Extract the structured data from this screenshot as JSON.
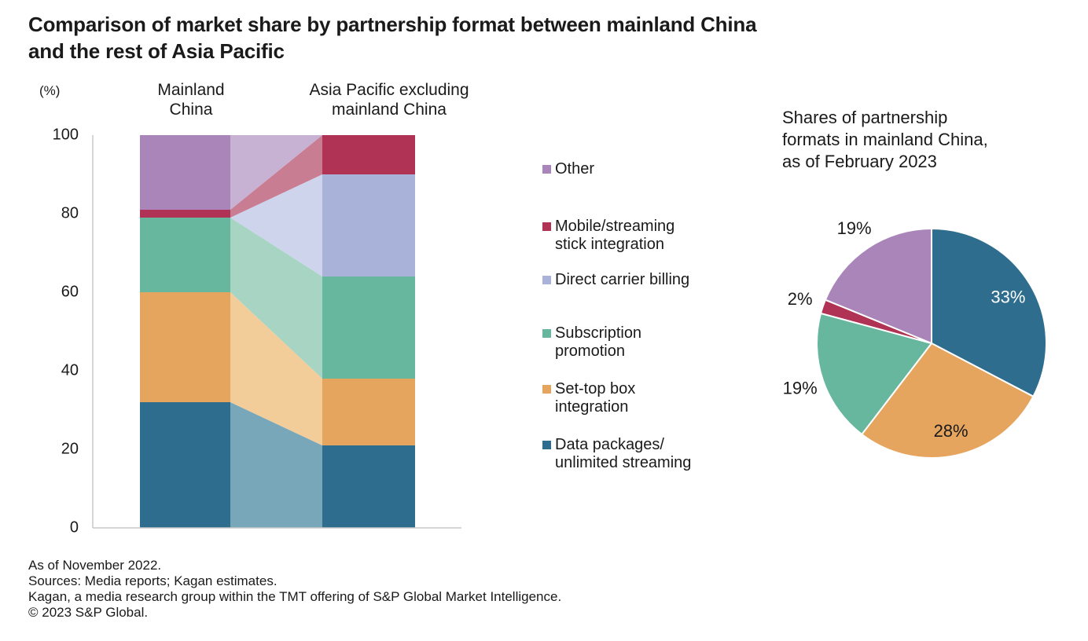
{
  "page": {
    "background": "#ffffff",
    "text_color": "#1a1a1a",
    "axis_color": "#c8c8c8"
  },
  "title": "Comparison of market share by partnership format between mainland China\nand the rest of Asia Pacific",
  "axis": {
    "unit_label": "(%)",
    "ticks": [
      0,
      20,
      40,
      60,
      80,
      100
    ]
  },
  "column_headers": {
    "mainland": "Mainland\nChina",
    "apac": "Asia Pacific excluding\nmainland China"
  },
  "legend": {
    "items": [
      {
        "label": "Other",
        "series": "Other"
      },
      {
        "label": "Mobile/streaming\nstick integration",
        "series": "Mobile/streaming stick integration"
      },
      {
        "label": "Direct carrier billing",
        "series": "Direct carrier billing"
      },
      {
        "label": "Subscription\npromotion",
        "series": "Subscription promotion"
      },
      {
        "label": "Set-top box\nintegration",
        "series": "Set-top box integration"
      },
      {
        "label": "Data packages/\nunlimited streaming",
        "series": "Data packages/unlimited streaming"
      }
    ]
  },
  "pie": {
    "title": "Shares of partnership\nformats in mainland China,\nas of February 2023"
  },
  "footer": {
    "lines": [
      "As of November 2022.",
      "Sources: Media reports; Kagan estimates.",
      "Kagan, a media research group within the TMT offering of S&P Global Market Intelligence.",
      "© 2023 S&P Global."
    ]
  },
  "chart_data": [
    {
      "type": "area",
      "title": "Comparison of market share by partnership format between mainland China and the rest of Asia Pacific",
      "xlabel": "",
      "ylabel": "(%)",
      "ylim": [
        0,
        100
      ],
      "yticks": [
        0,
        20,
        40,
        60,
        80,
        100
      ],
      "grid": false,
      "categories": [
        "Mainland China",
        "Asia Pacific excluding mainland China"
      ],
      "series": [
        {
          "name": "Data packages/unlimited streaming",
          "values": [
            32,
            21
          ],
          "color": "#2e6d8d",
          "color_light": "#79a7ba"
        },
        {
          "name": "Set-top box integration",
          "values": [
            28,
            17
          ],
          "color": "#e6a55e",
          "color_light": "#f2cd9a"
        },
        {
          "name": "Subscription promotion",
          "values": [
            19,
            26
          ],
          "color": "#67b79e",
          "color_light": "#a8d5c3"
        },
        {
          "name": "Direct carrier billing",
          "values": [
            0,
            26
          ],
          "color": "#a9b3d9",
          "color_light": "#ced4ec"
        },
        {
          "name": "Mobile/streaming stick integration",
          "values": [
            2,
            10
          ],
          "color": "#b03355",
          "color_light": "#c97d92"
        },
        {
          "name": "Other",
          "values": [
            19,
            0
          ],
          "color": "#a985ba",
          "color_light": "#c8b2d4"
        }
      ]
    },
    {
      "type": "pie",
      "title": "Shares of partnership formats in mainland China, as of February 2023",
      "start_angle_deg": 0,
      "direction": "clockwise",
      "slices": [
        {
          "name": "Data packages/unlimited streaming",
          "value": 33,
          "label": "33%",
          "label_inside": true,
          "label_color": "#ffffff"
        },
        {
          "name": "Set-top box integration",
          "value": 28,
          "label": "28%",
          "label_inside": true,
          "label_color": "#1a1a1a"
        },
        {
          "name": "Subscription promotion",
          "value": 19,
          "label": "19%",
          "label_inside": false,
          "label_color": "#1a1a1a"
        },
        {
          "name": "Mobile/streaming stick integration",
          "value": 2,
          "label": "2%",
          "label_inside": false,
          "label_color": "#1a1a1a"
        },
        {
          "name": "Other",
          "value": 19,
          "label": "19%",
          "label_inside": false,
          "label_color": "#1a1a1a"
        }
      ]
    }
  ]
}
